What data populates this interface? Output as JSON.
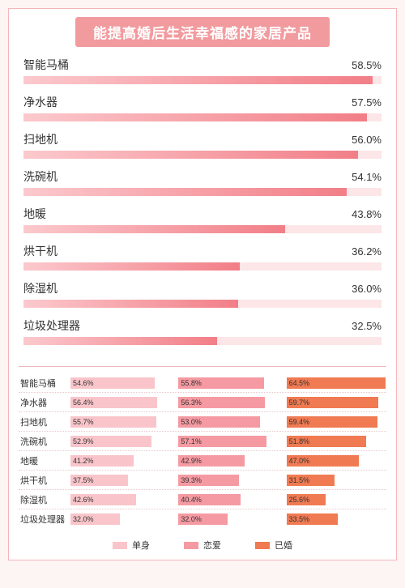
{
  "title": "能提高婚后生活幸福感的家居产品",
  "colors": {
    "page_bg": "#fdf4f4",
    "frame_border": "#f5b5b9",
    "title_bg": "#f29b9f",
    "title_text": "#ffffff",
    "upper_track": "#fce6e8",
    "upper_fill_start": "#fbc9cd",
    "upper_fill_end": "#f27e87",
    "divider": "#eeb9bd",
    "group_colors": [
      "#f9c5ca",
      "#f59aa2",
      "#f07a52"
    ]
  },
  "upper_chart": {
    "type": "bar",
    "max": 60,
    "label_fontsize": 14,
    "value_fontsize": 13,
    "items": [
      {
        "label": "智能马桶",
        "value": 58.5
      },
      {
        "label": "净水器",
        "value": 57.5
      },
      {
        "label": "扫地机",
        "value": 56.0
      },
      {
        "label": "洗碗机",
        "value": 54.1
      },
      {
        "label": "地暖",
        "value": 43.8
      },
      {
        "label": "烘干机",
        "value": 36.2
      },
      {
        "label": "除湿机",
        "value": 36.0
      },
      {
        "label": "垃圾处理器",
        "value": 32.5
      }
    ]
  },
  "lower_chart": {
    "type": "grouped-bar",
    "max": 65,
    "label_fontsize": 11,
    "value_fontsize": 9,
    "groups": [
      {
        "name": "单身",
        "color": "#f9c5ca"
      },
      {
        "name": "恋爱",
        "color": "#f59aa2"
      },
      {
        "name": "已婚",
        "color": "#f07a52"
      }
    ],
    "rows": [
      {
        "label": "智能马桶",
        "values": [
          54.6,
          55.8,
          64.5
        ]
      },
      {
        "label": "净水器",
        "values": [
          56.4,
          56.3,
          59.7
        ]
      },
      {
        "label": "扫地机",
        "values": [
          55.7,
          53.0,
          59.4
        ]
      },
      {
        "label": "洗碗机",
        "values": [
          52.9,
          57.1,
          51.8
        ]
      },
      {
        "label": "地暖",
        "values": [
          41.2,
          42.9,
          47.0
        ]
      },
      {
        "label": "烘干机",
        "values": [
          37.5,
          39.3,
          31.5
        ]
      },
      {
        "label": "除湿机",
        "values": [
          42.6,
          40.4,
          25.6
        ]
      },
      {
        "label": "垃圾处理器",
        "values": [
          32.0,
          32.0,
          33.5
        ]
      }
    ]
  }
}
